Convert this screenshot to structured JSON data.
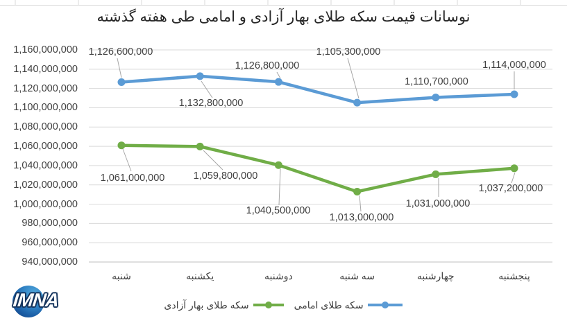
{
  "chart_data": {
    "type": "line",
    "title": "نوسانات قیمت سکه طلای بهار آزادی و امامی طی هفته گذشته",
    "categories": [
      "شنبه",
      "یکشنبه",
      "دوشنبه",
      "سه شنبه",
      "چهارشنبه",
      "پنجشنبه"
    ],
    "series": [
      {
        "name": "سکه طلای بهار آزادی",
        "color": "#70AD47",
        "values": [
          1061000000,
          1059800000,
          1040500000,
          1013000000,
          1031000000,
          1037200000
        ]
      },
      {
        "name": "سکه طلای امامی",
        "color": "#5B9BD5",
        "values": [
          1126600000,
          1132800000,
          1126800000,
          1105300000,
          1110700000,
          1114000000
        ]
      }
    ],
    "ylim": [
      940000000,
      1160000000
    ],
    "ytick_step": 20000000,
    "grid": true,
    "data_labels": true,
    "legend_position": "bottom"
  },
  "colors": {
    "gridline": "#D9D9D9",
    "axis_line": "#BFBFBF",
    "leader_line": "#A6A6A6",
    "label_text": "#404040",
    "title_text": "#262626"
  },
  "logo": {
    "text": "IMNA"
  }
}
